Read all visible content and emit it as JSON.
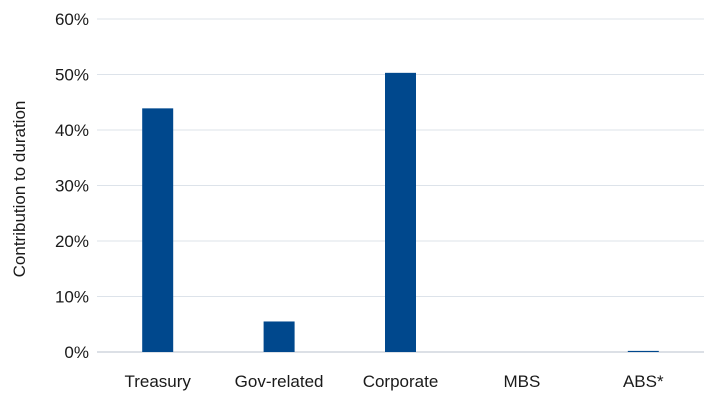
{
  "chart_data": {
    "type": "bar",
    "categories": [
      "Treasury",
      "Gov-related",
      "Corporate",
      "MBS",
      "ABS*"
    ],
    "values": [
      43.9,
      5.5,
      50.3,
      0.0,
      0.2
    ],
    "title": "",
    "xlabel": "",
    "ylabel": "Contribution to duration",
    "ylim": [
      0,
      60
    ],
    "yticks": [
      0,
      10,
      20,
      30,
      40,
      50,
      60
    ],
    "ytick_labels": [
      "0%",
      "10%",
      "20%",
      "30%",
      "40%",
      "50%",
      "60%"
    ],
    "bar_color": "#00488d",
    "grid": true,
    "legend": "none"
  }
}
